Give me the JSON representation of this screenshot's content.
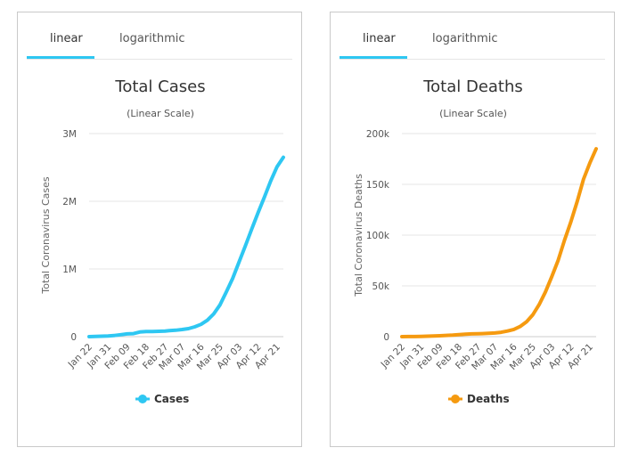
{
  "tabs": [
    "linear",
    "logarithmic"
  ],
  "panels": [
    {
      "title": "Total Cases",
      "subtitle": "(Linear Scale)",
      "color": "#2ec7f2",
      "chart_data": {
        "type": "line",
        "title": "Total Cases",
        "subtitle": "(Linear Scale)",
        "ylabel": "Total Coronavirus Cases",
        "xlabel": "",
        "ylim": [
          0,
          3000000
        ],
        "yticks": [
          0,
          1000000,
          2000000,
          3000000
        ],
        "ytick_labels": [
          "0",
          "1M",
          "2M",
          "3M"
        ],
        "xtick_labels": [
          "Jan 22",
          "Jan 31",
          "Feb 09",
          "Feb 18",
          "Feb 27",
          "Mar 07",
          "Mar 16",
          "Mar 25",
          "Apr 03",
          "Apr 12",
          "Apr 21"
        ],
        "grid": true,
        "legend": "bottom-center",
        "series": [
          {
            "name": "Cases",
            "x": [
              "Jan 22",
              "Jan 25",
              "Jan 28",
              "Jan 31",
              "Feb 03",
              "Feb 06",
              "Feb 09",
              "Feb 12",
              "Feb 15",
              "Feb 18",
              "Feb 21",
              "Feb 24",
              "Feb 27",
              "Mar 01",
              "Mar 04",
              "Mar 07",
              "Mar 10",
              "Mar 13",
              "Mar 16",
              "Mar 19",
              "Mar 22",
              "Mar 25",
              "Mar 28",
              "Mar 31",
              "Apr 03",
              "Apr 06",
              "Apr 09",
              "Apr 12",
              "Apr 15",
              "Apr 18",
              "Apr 21",
              "Apr 24"
            ],
            "values": [
              600,
              2900,
              6000,
              10000,
              17400,
              29000,
              40500,
              45200,
              69000,
              75000,
              76800,
              79300,
              83300,
              88000,
              95100,
              105800,
              119000,
              145000,
              182000,
              242000,
              336000,
              470000,
              660000,
              860000,
              1100000,
              1340000,
              1590000,
              1830000,
              2060000,
              2300000,
              2510000,
              2650000
            ]
          }
        ]
      }
    },
    {
      "title": "Total Deaths",
      "subtitle": "(Linear Scale)",
      "color": "#f59a10",
      "chart_data": {
        "type": "line",
        "title": "Total Deaths",
        "subtitle": "(Linear Scale)",
        "ylabel": "Total Coronavirus Deaths",
        "xlabel": "",
        "ylim": [
          0,
          200000
        ],
        "yticks": [
          0,
          50000,
          100000,
          150000,
          200000
        ],
        "ytick_labels": [
          "0",
          "50k",
          "100k",
          "150k",
          "200k"
        ],
        "xtick_labels": [
          "Jan 22",
          "Jan 31",
          "Feb 09",
          "Feb 18",
          "Feb 27",
          "Mar 07",
          "Mar 16",
          "Mar 25",
          "Apr 03",
          "Apr 12",
          "Apr 21"
        ],
        "grid": true,
        "legend": "bottom-center",
        "series": [
          {
            "name": "Deaths",
            "x": [
              "Jan 22",
              "Jan 25",
              "Jan 28",
              "Jan 31",
              "Feb 03",
              "Feb 06",
              "Feb 09",
              "Feb 12",
              "Feb 15",
              "Feb 18",
              "Feb 21",
              "Feb 24",
              "Feb 27",
              "Mar 01",
              "Mar 04",
              "Mar 07",
              "Mar 10",
              "Mar 13",
              "Mar 16",
              "Mar 19",
              "Mar 22",
              "Mar 25",
              "Mar 28",
              "Mar 31",
              "Apr 03",
              "Apr 06",
              "Apr 09",
              "Apr 12",
              "Apr 15",
              "Apr 18",
              "Apr 21",
              "Apr 24"
            ],
            "values": [
              17,
              80,
              130,
              260,
              430,
              640,
              910,
              1200,
              1520,
              2010,
              2360,
              2700,
              2860,
              3000,
              3250,
              3600,
              4300,
              5500,
              7100,
              10000,
              14600,
              21500,
              31500,
              44000,
              59000,
              75000,
              95000,
              113000,
              133000,
              155000,
              171000,
              185000
            ]
          }
        ]
      }
    }
  ]
}
